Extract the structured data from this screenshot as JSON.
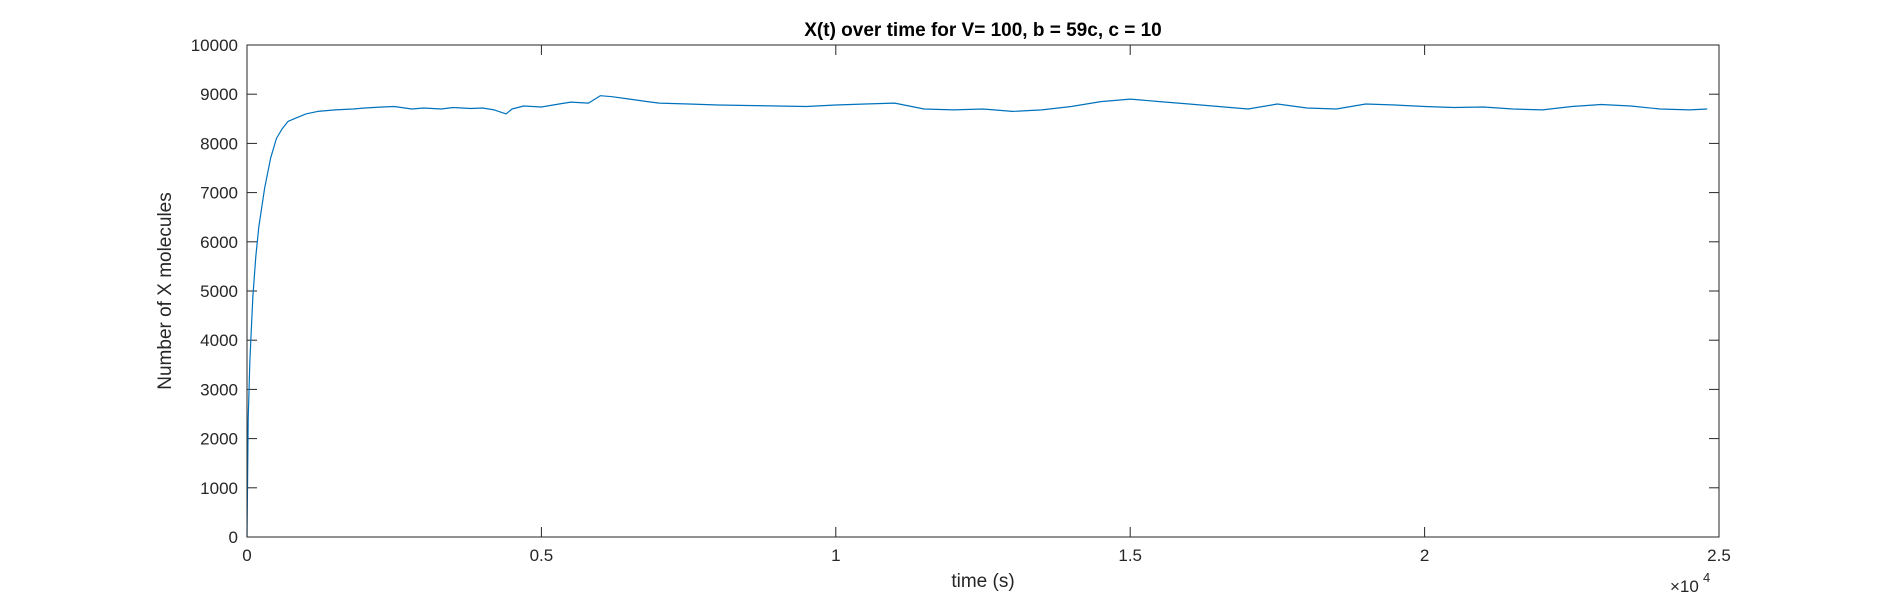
{
  "chart_data": {
    "type": "line",
    "title": "X(t) over time for V= 100, b = 59c, c = 10",
    "xlabel": "time (s)",
    "ylabel": "Number of X molecules",
    "x_exponent_label": "×10",
    "x_exponent": "4",
    "xlim": [
      0,
      25000
    ],
    "ylim": [
      0,
      10000
    ],
    "xticks": [
      0,
      5000,
      10000,
      15000,
      20000,
      25000
    ],
    "xtick_labels": [
      "0",
      "0.5",
      "1",
      "1.5",
      "2",
      "2.5"
    ],
    "yticks": [
      0,
      1000,
      2000,
      3000,
      4000,
      5000,
      6000,
      7000,
      8000,
      9000,
      10000
    ],
    "ytick_labels": [
      "0",
      "1000",
      "2000",
      "3000",
      "4000",
      "5000",
      "6000",
      "7000",
      "8000",
      "9000",
      "10000"
    ],
    "grid": false,
    "line_color": "#0072bd",
    "series": [
      {
        "x": [
          0,
          20,
          50,
          100,
          150,
          200,
          300,
          400,
          500,
          600,
          700,
          800,
          1000,
          1200,
          1500,
          1800,
          2000,
          2300,
          2500,
          2800,
          3000,
          3300,
          3500,
          3800,
          4000,
          4200,
          4400,
          4500,
          4700,
          5000,
          5300,
          5500,
          5800,
          6000,
          6200,
          6500,
          6800,
          7000,
          7500,
          8000,
          8500,
          9000,
          9500,
          10000,
          10500,
          11000,
          11500,
          12000,
          12500,
          13000,
          13500,
          14000,
          14500,
          15000,
          15500,
          16000,
          16500,
          17000,
          17500,
          18000,
          18500,
          19000,
          19500,
          20000,
          20500,
          21000,
          21500,
          22000,
          22500,
          23000,
          23500,
          24000,
          24500,
          24800
        ],
        "y": [
          0,
          2400,
          3600,
          4900,
          5700,
          6300,
          7100,
          7700,
          8100,
          8300,
          8450,
          8500,
          8600,
          8650,
          8680,
          8700,
          8720,
          8740,
          8750,
          8700,
          8720,
          8700,
          8730,
          8710,
          8720,
          8680,
          8600,
          8700,
          8760,
          8740,
          8800,
          8840,
          8820,
          8970,
          8950,
          8900,
          8850,
          8820,
          8800,
          8780,
          8770,
          8760,
          8750,
          8780,
          8800,
          8820,
          8700,
          8680,
          8700,
          8650,
          8680,
          8750,
          8850,
          8900,
          8850,
          8800,
          8750,
          8700,
          8800,
          8720,
          8700,
          8800,
          8780,
          8750,
          8730,
          8740,
          8700,
          8680,
          8750,
          8790,
          8760,
          8700,
          8680,
          8700
        ]
      }
    ]
  }
}
